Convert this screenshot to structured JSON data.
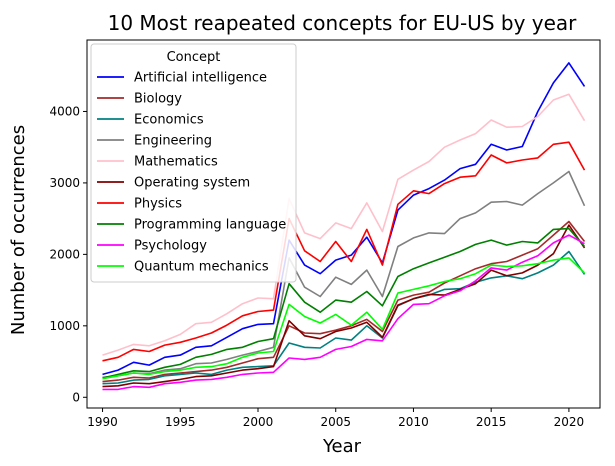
{
  "chart_data": {
    "type": "line",
    "title": "10 Most reapeated concepts for EU-US by year",
    "xlabel": "Year",
    "ylabel": "Number of occurrences",
    "xlim": [
      1989,
      2022
    ],
    "ylim": [
      -150,
      5000
    ],
    "xticks": [
      1990,
      1995,
      2000,
      2005,
      2010,
      2015,
      2020
    ],
    "yticks": [
      0,
      1000,
      2000,
      3000,
      4000
    ],
    "grid": false,
    "legend_title": "Concept",
    "legend_position": "upper-left",
    "x": [
      1990,
      1991,
      1992,
      1993,
      1994,
      1995,
      1996,
      1997,
      1998,
      1999,
      2000,
      2001,
      2002,
      2003,
      2004,
      2005,
      2006,
      2007,
      2008,
      2009,
      2010,
      2011,
      2012,
      2013,
      2014,
      2015,
      2016,
      2017,
      2018,
      2019,
      2020,
      2021
    ],
    "series": [
      {
        "name": "Artificial intelligence",
        "color": "#0000ff",
        "values": [
          320,
          380,
          490,
          450,
          560,
          590,
          700,
          720,
          840,
          960,
          1020,
          1030,
          2200,
          1850,
          1730,
          1920,
          1990,
          2240,
          1880,
          2620,
          2830,
          2920,
          3040,
          3200,
          3260,
          3540,
          3460,
          3510,
          4000,
          4400,
          4680,
          4350
        ]
      },
      {
        "name": "Biology",
        "color": "#a52a2a",
        "values": [
          220,
          240,
          280,
          270,
          320,
          340,
          360,
          380,
          420,
          480,
          540,
          560,
          1000,
          900,
          890,
          940,
          1000,
          1090,
          920,
          1360,
          1430,
          1470,
          1600,
          1700,
          1800,
          1870,
          1900,
          1990,
          2080,
          2270,
          2460,
          2180
        ]
      },
      {
        "name": "Economics",
        "color": "#008080",
        "values": [
          190,
          200,
          240,
          250,
          300,
          320,
          340,
          320,
          380,
          420,
          430,
          440,
          760,
          700,
          690,
          830,
          800,
          1000,
          830,
          1280,
          1380,
          1430,
          1510,
          1520,
          1610,
          1670,
          1700,
          1660,
          1740,
          1850,
          2040,
          1720
        ]
      },
      {
        "name": "Engineering",
        "color": "#808080",
        "values": [
          280,
          300,
          340,
          330,
          380,
          400,
          470,
          480,
          530,
          590,
          640,
          700,
          1950,
          1540,
          1410,
          1680,
          1580,
          1780,
          1410,
          2110,
          2230,
          2300,
          2290,
          2500,
          2580,
          2730,
          2740,
          2690,
          2850,
          3000,
          3160,
          2680
        ]
      },
      {
        "name": "Mathematics",
        "color": "#ffc0cb",
        "values": [
          590,
          660,
          740,
          720,
          790,
          880,
          1030,
          1050,
          1170,
          1310,
          1390,
          1380,
          2780,
          2300,
          2220,
          2440,
          2360,
          2720,
          2320,
          3050,
          3180,
          3300,
          3500,
          3600,
          3690,
          3880,
          3780,
          3790,
          3930,
          4160,
          4240,
          3870
        ]
      },
      {
        "name": "Operating system",
        "color": "#800000",
        "values": [
          150,
          160,
          200,
          190,
          220,
          250,
          290,
          300,
          340,
          380,
          400,
          430,
          1070,
          860,
          820,
          920,
          970,
          1050,
          840,
          1290,
          1380,
          1440,
          1430,
          1510,
          1590,
          1780,
          1700,
          1740,
          1850,
          2010,
          2410,
          2090
        ]
      },
      {
        "name": "Physics",
        "color": "#ff0000",
        "values": [
          510,
          560,
          670,
          640,
          730,
          770,
          830,
          900,
          1010,
          1140,
          1200,
          1220,
          2500,
          2050,
          1900,
          2180,
          1900,
          2350,
          1850,
          2700,
          2890,
          2850,
          2990,
          3080,
          3100,
          3390,
          3280,
          3320,
          3350,
          3540,
          3570,
          3180
        ]
      },
      {
        "name": "Programming language",
        "color": "#008000",
        "values": [
          270,
          320,
          370,
          360,
          420,
          460,
          560,
          600,
          670,
          700,
          780,
          820,
          1590,
          1330,
          1190,
          1360,
          1330,
          1480,
          1280,
          1690,
          1800,
          1880,
          1960,
          2040,
          2140,
          2200,
          2130,
          2180,
          2160,
          2350,
          2360,
          2110
        ]
      },
      {
        "name": "Psychology",
        "color": "#ff00ff",
        "values": [
          110,
          110,
          150,
          140,
          190,
          210,
          240,
          250,
          280,
          320,
          340,
          350,
          550,
          530,
          560,
          670,
          710,
          810,
          790,
          1100,
          1300,
          1310,
          1420,
          1490,
          1630,
          1810,
          1780,
          1890,
          1980,
          2160,
          2270,
          2150
        ]
      },
      {
        "name": "Quantum mechanics",
        "color": "#00ff00",
        "values": [
          260,
          300,
          340,
          320,
          360,
          380,
          420,
          430,
          470,
          560,
          620,
          640,
          1300,
          1130,
          1040,
          1160,
          1010,
          1190,
          950,
          1460,
          1510,
          1560,
          1620,
          1660,
          1730,
          1850,
          1830,
          1840,
          1870,
          1920,
          1950,
          1740
        ]
      }
    ]
  }
}
